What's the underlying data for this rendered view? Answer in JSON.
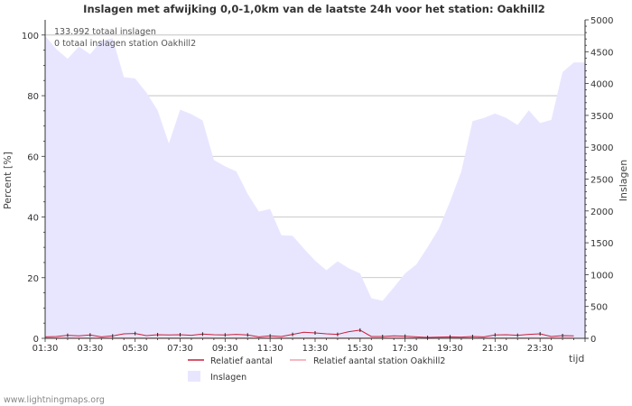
{
  "chart_data": {
    "type": "area",
    "title": "Inslagen met afwijking 0,0-1,0km van de laatste 24h voor het station: Oakhill2",
    "info_lines": [
      "133.992 totaal inslagen",
      "0 totaal inslagen station Oakhill2"
    ],
    "xlabel": "tijd",
    "ylabel_left": "Percent   [%]",
    "ylabel_right": "Inslagen",
    "ylim_left": [
      0,
      105
    ],
    "ylim_right": [
      0,
      5000
    ],
    "x_tick_labels": [
      "01:30",
      "03:30",
      "05:30",
      "07:30",
      "09:30",
      "11:30",
      "13:30",
      "15:30",
      "17:30",
      "19:30",
      "21:30",
      "23:30"
    ],
    "y_left_tick_labels": [
      "0",
      "20",
      "40",
      "60",
      "80",
      "100"
    ],
    "y_left_ticks": [
      0,
      20,
      40,
      60,
      80,
      100
    ],
    "y_right_tick_labels": [
      "0",
      "500",
      "1000",
      "1500",
      "2000",
      "2500",
      "3000",
      "3500",
      "4000",
      "4500",
      "5000"
    ],
    "y_right_ticks": [
      0,
      500,
      1000,
      1500,
      2000,
      2500,
      3000,
      3500,
      4000,
      4500,
      5000
    ],
    "x_start_hour": 1.5,
    "x_step_hours": 0.5,
    "series": [
      {
        "name": "Inslagen",
        "axis": "right",
        "values": [
          4750,
          4540,
          4390,
          4580,
          4460,
          4670,
          4710,
          4100,
          4080,
          3860,
          3580,
          3060,
          3590,
          3520,
          3420,
          2800,
          2700,
          2620,
          2270,
          1990,
          2030,
          1620,
          1610,
          1410,
          1220,
          1070,
          1210,
          1100,
          1020,
          630,
          590,
          800,
          1020,
          1160,
          1430,
          1720,
          2150,
          2620,
          3410,
          3460,
          3530,
          3460,
          3350,
          3580,
          3380,
          3430,
          4180,
          4330
        ]
      },
      {
        "name": "Relatief aantal",
        "axis": "left",
        "values": [
          0.5,
          0.6,
          1.0,
          0.8,
          1.1,
          0.5,
          0.8,
          1.5,
          1.6,
          0.9,
          1.2,
          1.1,
          1.2,
          1.0,
          1.4,
          1.2,
          1.1,
          1.3,
          1.1,
          0.5,
          0.8,
          0.6,
          1.3,
          2.0,
          1.8,
          1.5,
          1.3,
          2.2,
          2.7,
          0.6,
          0.6,
          0.8,
          0.7,
          0.5,
          0.3,
          0.4,
          0.5,
          0.4,
          0.6,
          0.5,
          1.1,
          1.2,
          1.0,
          1.3,
          1.5,
          0.6,
          0.9,
          0.8
        ]
      },
      {
        "name": "Relatief aantal station Oakhill2",
        "axis": "left",
        "values": [
          0,
          0,
          0,
          0,
          0,
          0,
          0,
          0,
          0,
          0,
          0,
          0,
          0,
          0,
          0,
          0,
          0,
          0,
          0,
          0,
          0,
          0,
          0,
          0,
          0,
          0,
          0,
          0,
          0,
          0,
          0,
          0,
          0,
          0,
          0,
          0,
          0,
          0,
          0,
          0,
          0,
          0,
          0,
          0,
          0,
          0,
          0,
          0
        ]
      }
    ],
    "colors": {
      "area_fill": "#e8e6ff",
      "relatief": "#cc1f3a",
      "relatief_station": "#f2a0ac",
      "grid": "#bbbbbb",
      "axis": "#333333"
    },
    "legend": [
      "Relatief aantal",
      "Relatief aantal station Oakhill2",
      "Inslagen"
    ]
  },
  "footer": "www.lightningmaps.org"
}
